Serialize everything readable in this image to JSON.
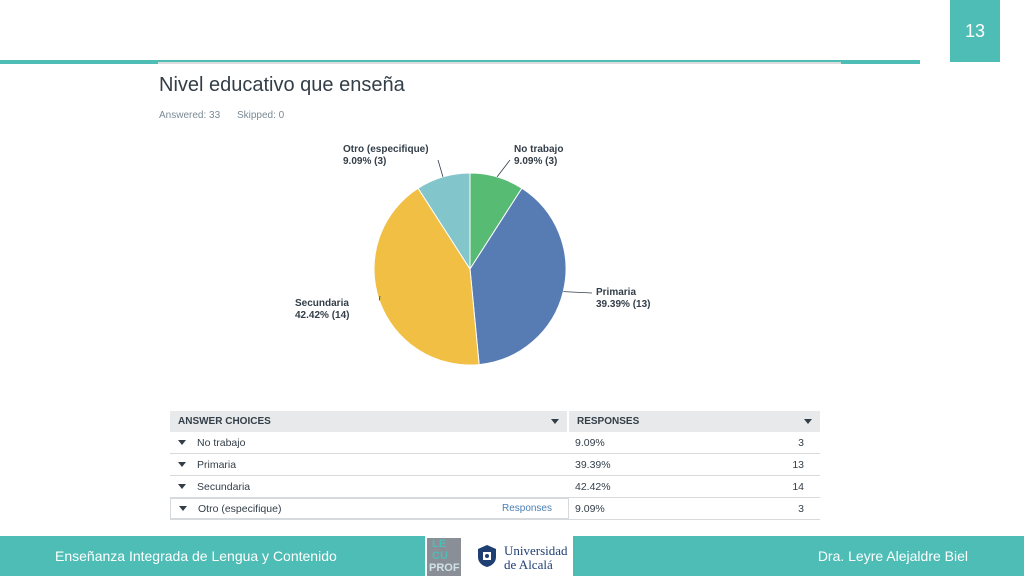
{
  "page_number": "13",
  "title": "Nivel educativo que enseña",
  "answered": "Answered: 33",
  "skipped": "Skipped: 0",
  "chart_data": {
    "type": "pie",
    "categories": [
      "No trabajo",
      "Primaria",
      "Secundaria",
      "Otro (especifique)"
    ],
    "values": [
      9.09,
      39.39,
      42.42,
      9.09
    ],
    "counts": [
      3,
      13,
      14,
      3
    ],
    "labels": [
      {
        "name": "No trabajo",
        "value": "9.09% (3)"
      },
      {
        "name": "Primaria",
        "value": "39.39% (13)"
      },
      {
        "name": "Secundaria",
        "value": "42.42% (14)"
      },
      {
        "name": "Otro (especifique)",
        "value": "9.09% (3)"
      }
    ],
    "colors": [
      "#57bb74",
      "#577cb4",
      "#f0bf43",
      "#82c5cb"
    ]
  },
  "table": {
    "header_choices": "ANSWER CHOICES",
    "header_responses": "RESPONSES",
    "rows": [
      {
        "choice": "No trabajo",
        "percent": "9.09%",
        "count": "3"
      },
      {
        "choice": "Primaria",
        "percent": "39.39%",
        "count": "13"
      },
      {
        "choice": "Secundaria",
        "percent": "42.42%",
        "count": "14"
      },
      {
        "choice": "Otro (especifique)",
        "percent": "9.09%",
        "count": "3",
        "link": "Responses"
      }
    ]
  },
  "footer": {
    "left": "Enseñanza Integrada de Lengua y Contenido",
    "right": "Dra. Leyre Alejaldre Biel",
    "logo_lecuprof": "LECUPROF",
    "university_line1": "Universidad",
    "university_line2": "de Alcalá"
  }
}
